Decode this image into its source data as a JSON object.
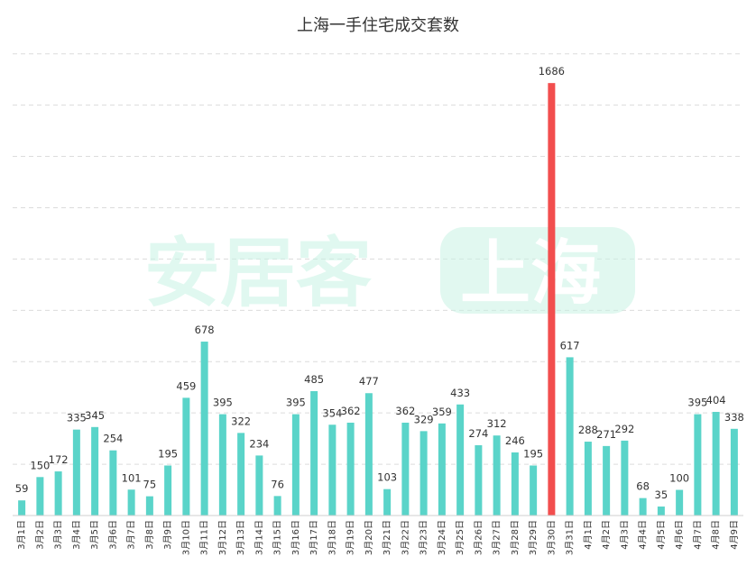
{
  "chart_data": {
    "type": "bar",
    "title": "上海一手住宅成交套数",
    "xlabel": "",
    "ylabel": "",
    "ylim": [
      0,
      1800
    ],
    "grid": true,
    "legend": "none",
    "colors": {
      "default": "#5ad4c9",
      "highlight": "#f24e4e"
    },
    "highlight_category": "3月30日",
    "categories": [
      "3月1日",
      "3月2日",
      "3月3日",
      "3月4日",
      "3月5日",
      "3月6日",
      "3月7日",
      "3月8日",
      "3月9日",
      "3月10日",
      "3月11日",
      "3月12日",
      "3月13日",
      "3月14日",
      "3月15日",
      "3月16日",
      "3月17日",
      "3月18日",
      "3月19日",
      "3月20日",
      "3月21日",
      "3月22日",
      "3月23日",
      "3月24日",
      "3月25日",
      "3月26日",
      "3月27日",
      "3月28日",
      "3月29日",
      "3月30日",
      "3月31日",
      "4月1日",
      "4月2日",
      "4月3日",
      "4月4日",
      "4月5日",
      "4月6日",
      "4月7日",
      "4月8日",
      "4月9日"
    ],
    "values": [
      59,
      150,
      172,
      335,
      345,
      254,
      101,
      75,
      195,
      459,
      678,
      395,
      322,
      234,
      76,
      395,
      485,
      354,
      362,
      477,
      103,
      362,
      329,
      359,
      433,
      274,
      312,
      246,
      195,
      1686,
      617,
      288,
      271,
      292,
      68,
      35,
      100,
      395,
      404,
      338
    ]
  },
  "watermark": {
    "text": "安居客",
    "badge": "上海"
  }
}
